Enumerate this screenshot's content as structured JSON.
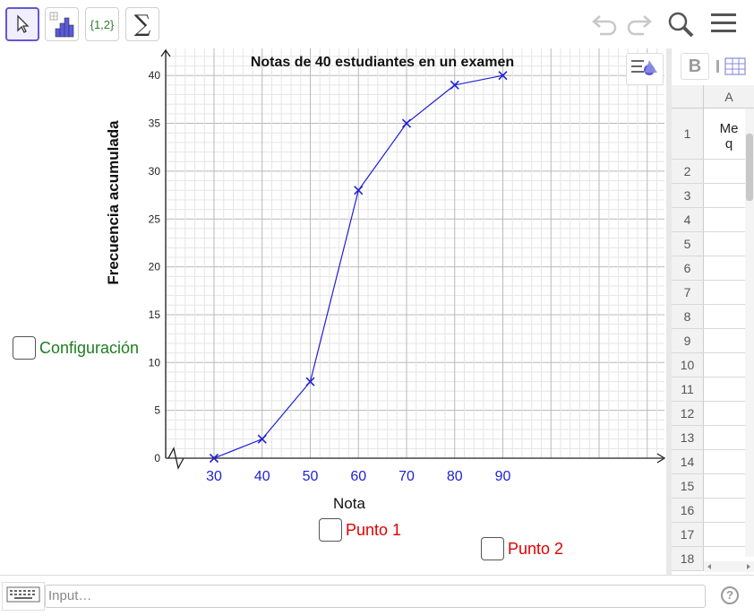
{
  "toolbar": {
    "tools": [
      {
        "name": "move-tool",
        "icon": "pointer-arrow-icon"
      },
      {
        "name": "histogram-tool",
        "icon": "bar-chart-icon"
      },
      {
        "name": "list-tool",
        "label": "{1,2}"
      },
      {
        "name": "sum-tool",
        "label": "∑"
      }
    ],
    "right_icons": [
      "undo-icon",
      "redo-icon",
      "search-icon",
      "menu-icon"
    ]
  },
  "graphics": {
    "style_bar_icon": "style-bar-icon",
    "checkboxes": {
      "configuracion": {
        "label": "Configuración",
        "color": "#1e7e1e"
      },
      "punto1": {
        "label": "Punto 1",
        "color": "#e00000"
      },
      "punto2": {
        "label": "Punto 2",
        "color": "#e00000"
      }
    }
  },
  "chart_data": {
    "type": "line",
    "title": "Notas de 40 estudiantes en un examen",
    "xlabel": "Nota",
    "ylabel": "Frecuencia acumulada",
    "x": [
      30,
      40,
      50,
      60,
      70,
      80,
      90
    ],
    "series": [
      {
        "values": [
          0,
          2,
          8,
          28,
          35,
          39,
          40
        ],
        "color": "#1f1fd6",
        "marker": "x"
      }
    ],
    "x_tick_labels": [
      "30",
      "40",
      "50",
      "60",
      "70",
      "80",
      "90"
    ],
    "y_tick_labels": [
      "0",
      "5",
      "10",
      "15",
      "20",
      "25",
      "30",
      "35",
      "40"
    ],
    "xlim": [
      20,
      120
    ],
    "ylim": [
      0,
      40
    ],
    "x_axis_break": true,
    "grid": true,
    "x_tick_color": "#1f1fd6"
  },
  "spreadsheet": {
    "toolbar": {
      "bold_label": "B"
    },
    "column_header": "A",
    "rows": [
      {
        "num": "1",
        "value": "Me\nq"
      },
      {
        "num": "2",
        "value": ""
      },
      {
        "num": "3",
        "value": ""
      },
      {
        "num": "4",
        "value": ""
      },
      {
        "num": "5",
        "value": ""
      },
      {
        "num": "6",
        "value": ""
      },
      {
        "num": "7",
        "value": ""
      },
      {
        "num": "8",
        "value": ""
      },
      {
        "num": "9",
        "value": ""
      },
      {
        "num": "10",
        "value": ""
      },
      {
        "num": "11",
        "value": ""
      },
      {
        "num": "12",
        "value": ""
      },
      {
        "num": "13",
        "value": ""
      },
      {
        "num": "14",
        "value": ""
      },
      {
        "num": "15",
        "value": ""
      },
      {
        "num": "16",
        "value": ""
      },
      {
        "num": "17",
        "value": ""
      },
      {
        "num": "18",
        "value": ""
      }
    ]
  },
  "inputbar": {
    "placeholder": "Input…",
    "keyboard_icon": "keyboard-icon",
    "help_label": "?"
  }
}
